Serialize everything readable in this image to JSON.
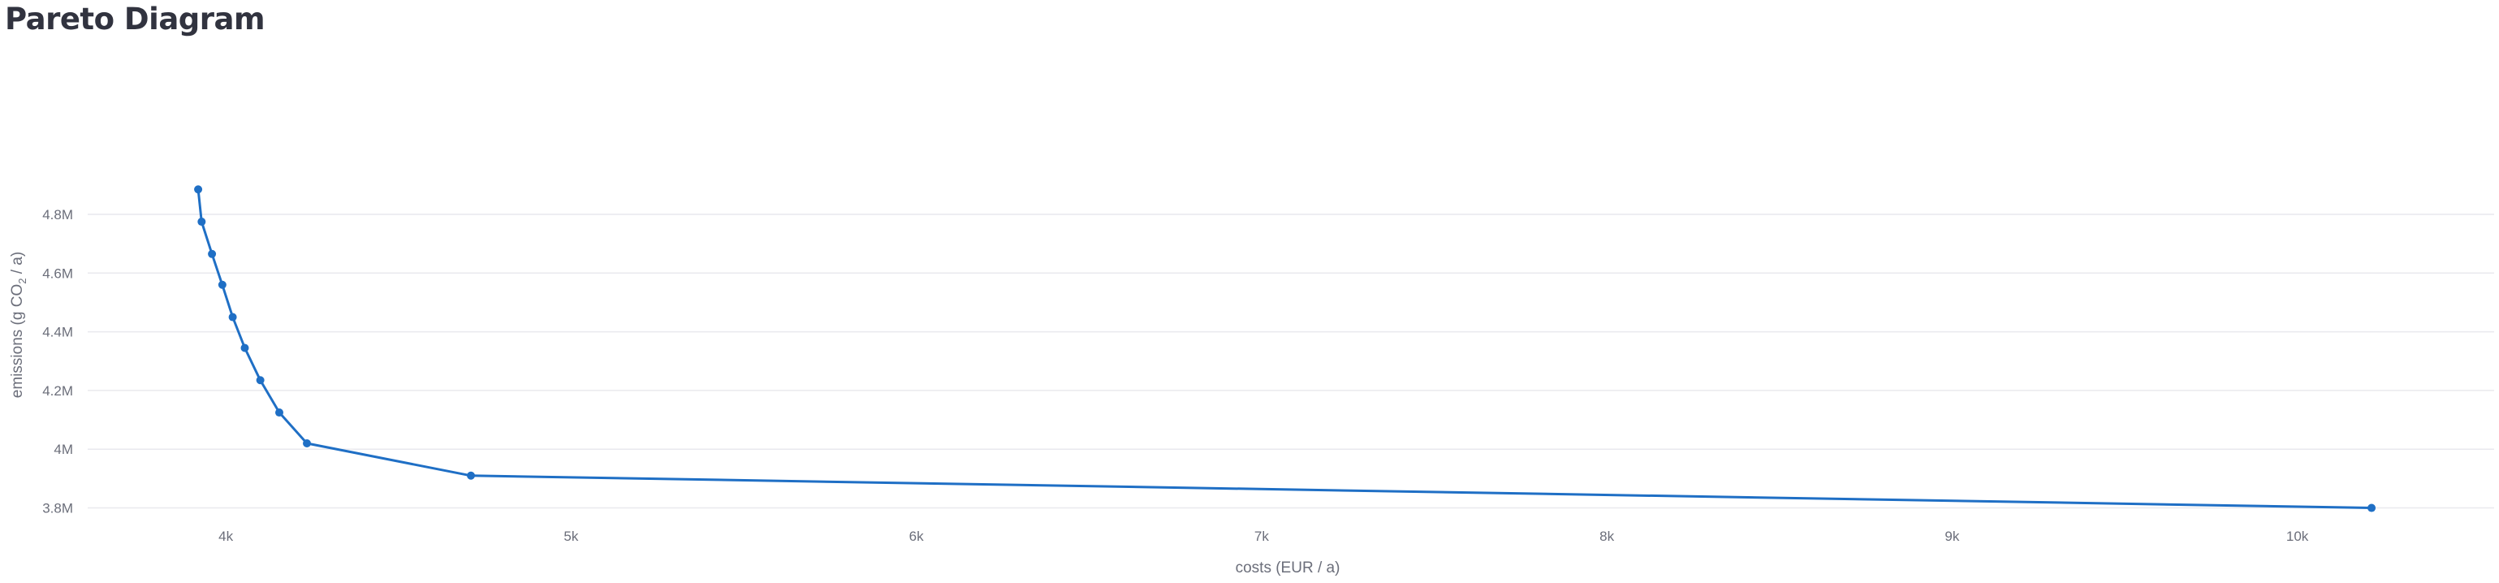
{
  "page": {
    "title": "Pareto Diagram"
  },
  "chart_data": {
    "type": "scatter",
    "mode": "lines+markers",
    "xlabel": "costs (EUR / a)",
    "ylabel": "emissions (g CO2 / a)",
    "ylabel_parts": {
      "prefix": "emissions (g CO",
      "subscript": "2",
      "suffix": " / a)"
    },
    "xlim": [
      3600,
      10570
    ],
    "ylim": [
      3760000,
      5060000
    ],
    "x_ticks": [
      {
        "value": 4000,
        "label": "4k"
      },
      {
        "value": 5000,
        "label": "5k"
      },
      {
        "value": 6000,
        "label": "6k"
      },
      {
        "value": 7000,
        "label": "7k"
      },
      {
        "value": 8000,
        "label": "8k"
      },
      {
        "value": 9000,
        "label": "9k"
      },
      {
        "value": 10000,
        "label": "10k"
      }
    ],
    "y_ticks": [
      {
        "value": 3800000,
        "label": "3.8M"
      },
      {
        "value": 4000000,
        "label": "4M"
      },
      {
        "value": 4200000,
        "label": "4.2M"
      },
      {
        "value": 4400000,
        "label": "4.4M"
      },
      {
        "value": 4600000,
        "label": "4.6M"
      },
      {
        "value": 4800000,
        "label": "4.8M"
      }
    ],
    "grid": {
      "x": false,
      "y": true
    },
    "color": "#1f6fc5",
    "gridline_color": "#e9e9ee",
    "series": [
      {
        "x": [
          3920,
          3930,
          3960,
          3990,
          4020,
          4055,
          4100,
          4155,
          4235,
          4710,
          10215
        ],
        "y": [
          4885000,
          4775000,
          4665000,
          4560000,
          4450000,
          4345000,
          4235000,
          4125000,
          4020000,
          3910000,
          3800000
        ]
      }
    ]
  }
}
